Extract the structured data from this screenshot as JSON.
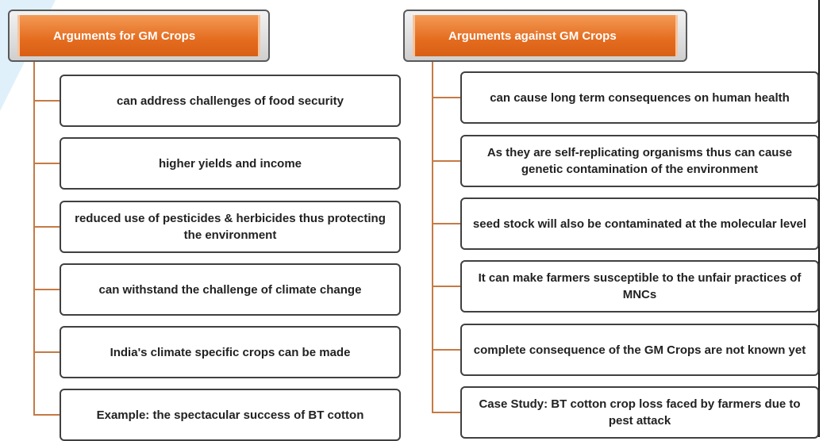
{
  "columns": [
    {
      "title": "Arguments for GM Crops",
      "items": [
        "can address challenges of food security",
        "higher yields and income",
        "reduced use of pesticides & herbicides thus protecting the environment",
        "can withstand the challenge of climate change",
        "India's climate specific crops can be made",
        "Example: the spectacular success of BT cotton"
      ]
    },
    {
      "title": "Arguments against GM Crops",
      "items": [
        "can cause long term consequences on human health",
        "As they are self-replicating organisms thus can cause genetic contamination of the environment",
        "seed stock will also be contaminated at the molecular level",
        "It can make farmers susceptible to the unfair practices of MNCs",
        "complete consequence of the GM Crops are not known yet",
        "Case Study: BT cotton crop loss faced by farmers due to pest attack"
      ]
    }
  ]
}
